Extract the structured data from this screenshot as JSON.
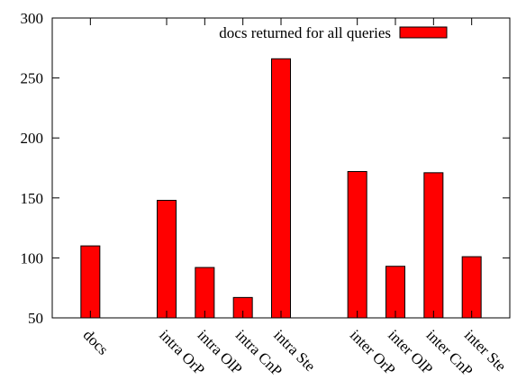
{
  "chart_data": {
    "type": "bar",
    "title": "",
    "xlabel": "",
    "ylabel": "",
    "ylim": [
      50,
      300
    ],
    "yticks": [
      50,
      100,
      150,
      200,
      250,
      300
    ],
    "categories": [
      "docs",
      "",
      "intra OrP",
      "intra OlP",
      "intra CnP",
      "intra Ste",
      "",
      "inter OrP",
      "inter OlP",
      "inter CnP",
      "inter Ste"
    ],
    "series": [
      {
        "name": "docs returned for all queries",
        "color": "#ff0000",
        "values": [
          110,
          null,
          148,
          92,
          67,
          266,
          null,
          172,
          93,
          171,
          101
        ]
      }
    ],
    "legend": {
      "position": "top-right"
    },
    "grid": false
  }
}
